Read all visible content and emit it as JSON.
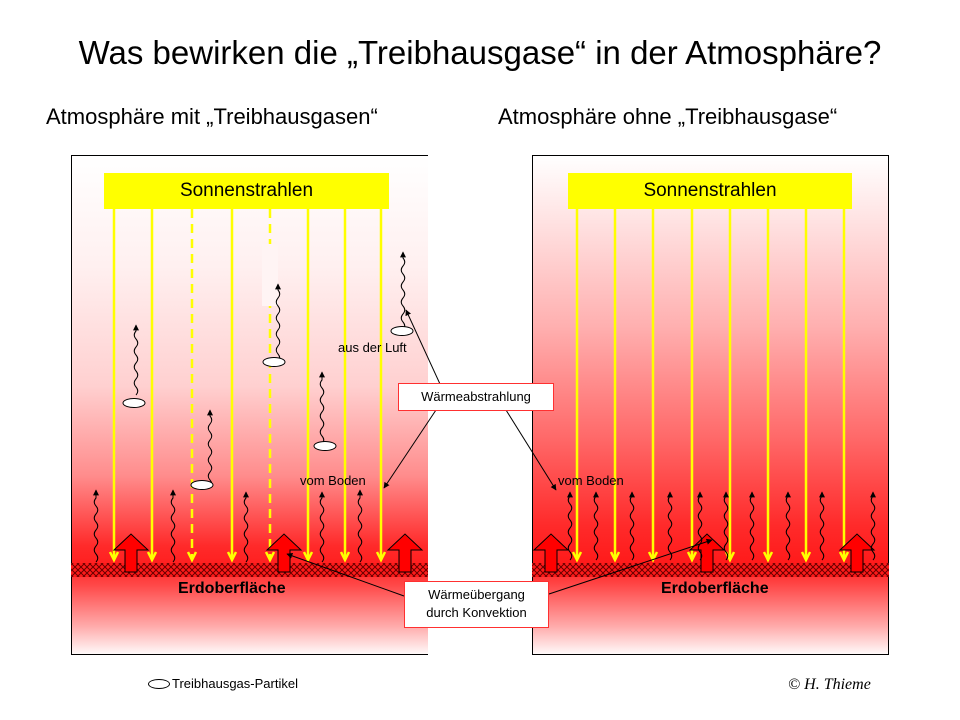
{
  "title": "Was bewirken die „Treibhausgase“ in der Atmosphäre?",
  "left_panel": {
    "heading": "Atmosphäre mit „Treibhausgasen“",
    "sun_label": "Sonnenstrahlen",
    "ground_label": "Erdoberfläche",
    "air_label": "aus der Luft",
    "ground_emission_label": "vom Boden"
  },
  "right_panel": {
    "heading": "Atmosphäre ohne „Treibhausgase“",
    "sun_label": "Sonnenstrahlen",
    "ground_label": "Erdoberfläche",
    "ground_emission_label": "vom Boden"
  },
  "callouts": {
    "radiation": "Wärmeabstrahlung",
    "convection_line1": "Wärmeübergang",
    "convection_line2": "durch Konvektion"
  },
  "legend": {
    "particle_label": "Treibhausgas-Partikel"
  },
  "credit": "©  H. Thieme",
  "colors": {
    "sun": "#ffff00",
    "sunray": "#ffff00",
    "heat_red": "#ff0000",
    "callout_border": "#ff3030",
    "ground_hatch": "#7a0000"
  }
}
